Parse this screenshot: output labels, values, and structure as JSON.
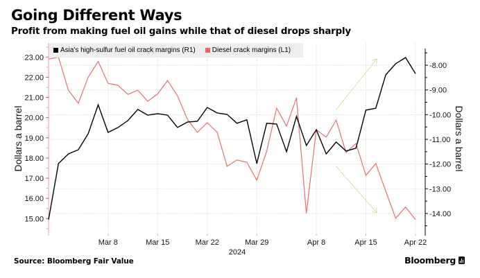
{
  "header": {
    "title": "Going Different Ways",
    "subtitle": "Profit from making fuel oil gains while that of diesel drops sharply"
  },
  "legend": {
    "items": [
      {
        "label": "Asia's high-sulfur fuel oil crack margins (R1)",
        "color": "#000000"
      },
      {
        "label": "Diesel crack margins (L1)",
        "color": "#ef6060"
      }
    ]
  },
  "footer": {
    "source": "Source: Bloomberg Fair Value",
    "brand": "Bloomberg"
  },
  "chart_data": {
    "type": "line",
    "title": "Going Different Ways",
    "subtitle": "Profit from making fuel oil gains while that of diesel drops sharply",
    "xlabel": "2024",
    "ylabel_left": "Dollars a barrel",
    "ylabel_right": "Dollars a barrel",
    "grid": true,
    "legend_position": "top-left",
    "x": [
      "Feb 29",
      "Mar 1",
      "Mar 4",
      "Mar 5",
      "Mar 6",
      "Mar 7",
      "Mar 8",
      "Mar 11",
      "Mar 12",
      "Mar 13",
      "Mar 14",
      "Mar 15",
      "Mar 18",
      "Mar 19",
      "Mar 20",
      "Mar 21",
      "Mar 22",
      "Mar 25",
      "Mar 26",
      "Mar 27",
      "Mar 28",
      "Mar 29",
      "Apr 1",
      "Apr 2",
      "Apr 3",
      "Apr 4",
      "Apr 5",
      "Apr 8",
      "Apr 9",
      "Apr 10",
      "Apr 11",
      "Apr 12",
      "Apr 15",
      "Apr 16",
      "Apr 17",
      "Apr 18",
      "Apr 19",
      "Apr 22"
    ],
    "x_ticks": [
      "Mar 8",
      "Mar 15",
      "Mar 22",
      "Mar 29",
      "Apr 8",
      "Apr 15",
      "Apr 22"
    ],
    "left_axis": {
      "name": "L1",
      "range": [
        14.15,
        23.7
      ],
      "ticks": [
        15,
        16,
        17,
        18,
        19,
        20,
        21,
        22,
        23
      ],
      "color": "#e8a0a0"
    },
    "right_axis": {
      "name": "R1",
      "range": [
        -14.9,
        -7.1
      ],
      "ticks": [
        -14,
        -13,
        -12,
        -11,
        -10,
        -9,
        -8
      ],
      "color": "#000000"
    },
    "series": [
      {
        "name": "Asia's high-sulfur fuel oil crack margins (R1)",
        "key": "hsfo",
        "axis": "right",
        "color": "#000000",
        "values": [
          -14.25,
          -11.98,
          -11.59,
          -11.42,
          -10.77,
          -9.6,
          -10.72,
          -10.52,
          -10.24,
          -9.79,
          -10.02,
          -9.96,
          -10.02,
          -10.52,
          -10.3,
          -10.27,
          -9.71,
          -9.93,
          -9.99,
          -10.35,
          -10.21,
          -11.98,
          -10.35,
          -10.38,
          -11.5,
          -10.07,
          -11.25,
          -10.61,
          -11.59,
          -11.11,
          -11.47,
          -11.36,
          -9.82,
          -9.74,
          -8.39,
          -7.94,
          -7.69,
          -8.34
        ]
      },
      {
        "name": "Diesel crack margins (L1)",
        "key": "diesel",
        "axis": "left",
        "color": "#e46f6b",
        "values": [
          22.9,
          23.0,
          21.36,
          20.71,
          22.01,
          22.79,
          21.7,
          21.6,
          21.15,
          21.36,
          20.81,
          21.18,
          21.84,
          21.08,
          19.92,
          19.27,
          19.75,
          19.27,
          17.59,
          17.9,
          17.79,
          16.9,
          18.34,
          20.47,
          19.58,
          20.98,
          15.26,
          19.4,
          19.03,
          19.88,
          18.27,
          18.72,
          17.14,
          17.73,
          16.36,
          15.02,
          15.57,
          14.95
        ]
      }
    ],
    "annotations": [
      {
        "type": "arrow",
        "name": "upward-trend-arrow",
        "axis": "right",
        "color": "#a9d86e",
        "from": {
          "x_index": 29.0,
          "y": -9.79
        },
        "to": {
          "x_index": 33.1,
          "y": -7.75
        }
      },
      {
        "type": "arrow",
        "name": "downward-trend-arrow",
        "axis": "right",
        "color": "#a9d86e",
        "from": {
          "x_index": 29.0,
          "y": -12.09
        },
        "to": {
          "x_index": 33.1,
          "y": -13.97
        }
      }
    ]
  }
}
